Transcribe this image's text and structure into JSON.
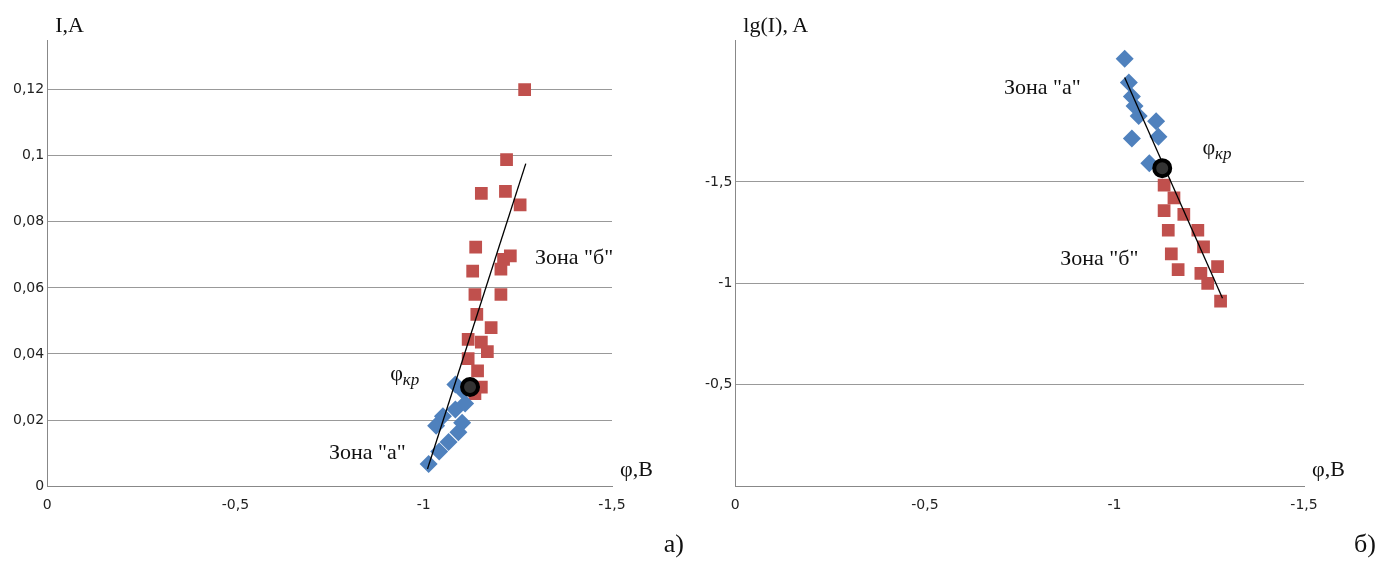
{
  "chart_data": [
    {
      "type": "scatter",
      "xlabel": "φ,В",
      "ylabel": "I,A",
      "xlim": [
        0,
        -1.5
      ],
      "xticks": [
        {
          "value": 0,
          "label": "0"
        },
        {
          "value": -0.5,
          "label": "-0,5"
        },
        {
          "value": -1,
          "label": "-1"
        },
        {
          "value": -1.5,
          "label": "-1,5"
        }
      ],
      "ylim": [
        0,
        0.135
      ],
      "yticks": [
        {
          "value": 0,
          "label": "0"
        },
        {
          "value": 0.02,
          "label": "0,02"
        },
        {
          "value": 0.04,
          "label": "0,04"
        },
        {
          "value": 0.06,
          "label": "0,06"
        },
        {
          "value": 0.08,
          "label": "0,08"
        },
        {
          "value": 0.1,
          "label": "0,1"
        },
        {
          "value": 0.12,
          "label": "0,12"
        }
      ],
      "grid": "y",
      "legend": false,
      "series": [
        {
          "type": "scatter",
          "marker": "diamond",
          "color": "#4f81bd",
          "x": [
            -1.013,
            -1.041,
            -1.066,
            -1.092,
            -1.033,
            -1.102,
            -1.051,
            -1.084,
            -1.11,
            -1.084,
            -1.102
          ],
          "values": [
            0.0067,
            0.0105,
            0.0134,
            0.0163,
            0.0183,
            0.0192,
            0.0212,
            0.0232,
            0.025,
            0.0308,
            0.029
          ]
        },
        {
          "type": "scatter",
          "marker": "square",
          "color": "#c0504d",
          "x": [
            -1.268,
            -1.22,
            -1.153,
            -1.217,
            -1.256,
            -1.138,
            -1.13,
            -1.212,
            -1.23,
            -1.205,
            -1.205,
            -1.136,
            -1.141,
            -1.179,
            -1.118,
            -1.153,
            -1.169,
            -1.118,
            -1.143,
            -1.153,
            -1.136
          ],
          "values": [
            0.12,
            0.0988,
            0.0886,
            0.0892,
            0.0851,
            0.0723,
            0.0651,
            0.0686,
            0.0697,
            0.0657,
            0.058,
            0.058,
            0.052,
            0.048,
            0.0444,
            0.0436,
            0.0407,
            0.0386,
            0.0349,
            0.03,
            0.028
          ]
        },
        {
          "type": "scatter",
          "marker": "circle",
          "color": "#000000",
          "x": [
            -1.123
          ],
          "values": [
            0.03
          ]
        },
        {
          "type": "line",
          "marker": "none",
          "color": "#000000",
          "x": [
            -1.01,
            -1.271
          ],
          "values": [
            0.0052,
            0.0976
          ]
        }
      ],
      "annotations": [
        "Зона \"а\"",
        "Зона \"б\"",
        "φ$_{кр}$",
        "а)"
      ]
    },
    {
      "type": "scatter",
      "xlabel": "φ,В",
      "ylabel": "lg(I), A",
      "xlim": [
        0,
        -1.5
      ],
      "xticks": [
        {
          "value": 0,
          "label": "0"
        },
        {
          "value": -0.5,
          "label": "-0,5"
        },
        {
          "value": -1,
          "label": "-1"
        },
        {
          "value": -1.5,
          "label": "-1,5"
        }
      ],
      "ylim": [
        0,
        -2.2
      ],
      "yticks": [
        {
          "value": -0.5,
          "label": "-0,5"
        },
        {
          "value": -1,
          "label": "-1"
        },
        {
          "value": -1.5,
          "label": "-1,5"
        }
      ],
      "grid": "y",
      "legend": false,
      "series": [
        {
          "type": "scatter",
          "marker": "diamond",
          "color": "#4f81bd",
          "x": [
            -1.027,
            -1.038,
            -1.046,
            -1.053,
            -1.046,
            -1.11,
            -1.116,
            -1.092,
            -1.064
          ],
          "values": [
            -2.107,
            -1.99,
            -1.922,
            -1.874,
            -1.714,
            -1.8,
            -1.723,
            -1.592,
            -1.825
          ]
        },
        {
          "type": "scatter",
          "marker": "square",
          "color": "#c0504d",
          "x": [
            -1.131,
            -1.157,
            -1.131,
            -1.183,
            -1.142,
            -1.22,
            -1.15,
            -1.235,
            -1.168,
            -1.272,
            -1.228,
            -1.28,
            -1.246
          ],
          "values": [
            -1.485,
            -1.422,
            -1.359,
            -1.34,
            -1.262,
            -1.262,
            -1.146,
            -1.18,
            -1.068,
            -1.083,
            -1.049,
            -0.913,
            -1.0
          ]
        },
        {
          "type": "scatter",
          "marker": "circle",
          "color": "#000000",
          "x": [
            -1.126
          ],
          "values": [
            -1.568
          ]
        },
        {
          "type": "line",
          "marker": "none",
          "color": "#000000",
          "x": [
            -1.027,
            -1.285
          ],
          "values": [
            -2.015,
            -0.927
          ]
        }
      ],
      "annotations": [
        "Зона \"а\"",
        "Зона \"б\"",
        "φ$_{кр}$",
        "б)"
      ]
    }
  ]
}
